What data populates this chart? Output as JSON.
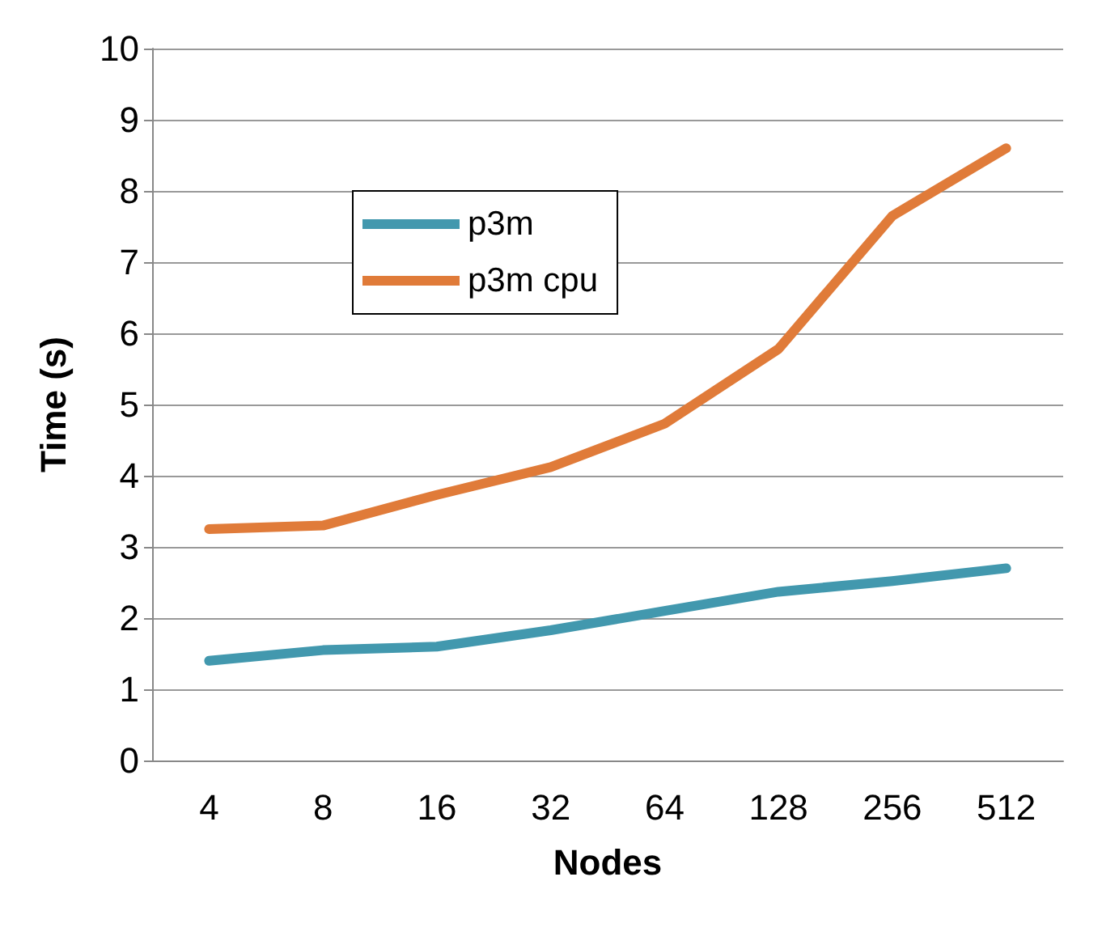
{
  "chart_data": {
    "type": "line",
    "xlabel": "Nodes",
    "ylabel": "Time (s)",
    "categories": [
      "4",
      "8",
      "16",
      "32",
      "64",
      "128",
      "256",
      "512"
    ],
    "series": [
      {
        "name": "p3m",
        "color": "#4298ae",
        "values": [
          1.4,
          1.55,
          1.6,
          1.83,
          2.1,
          2.37,
          2.52,
          2.7
        ]
      },
      {
        "name": "p3m cpu",
        "color": "#e07b39",
        "values": [
          3.25,
          3.3,
          3.73,
          4.12,
          4.73,
          5.78,
          7.65,
          8.6
        ]
      }
    ],
    "ylim": [
      0,
      10
    ],
    "yticks": [
      0,
      1,
      2,
      3,
      4,
      5,
      6,
      7,
      8,
      9,
      10
    ],
    "grid": "y",
    "legend": "top left",
    "marker": "none",
    "line_style": "solid"
  }
}
